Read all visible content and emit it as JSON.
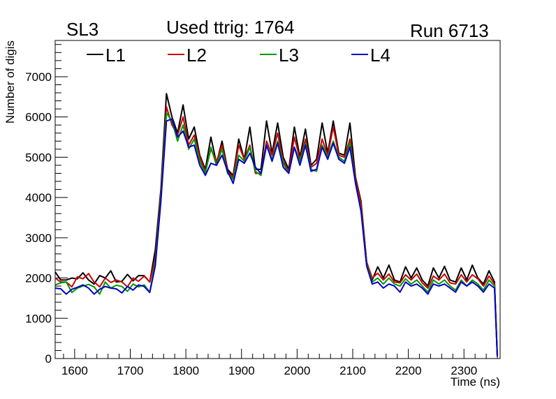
{
  "header": {
    "sl_label": "SL3",
    "title": "Used ttrig: 1764",
    "run_label": "Run 6713"
  },
  "chart_data": {
    "type": "line",
    "title": "Used ttrig: 1764",
    "xlabel": "Time (ns)",
    "ylabel": "Number of digis",
    "xlim": [
      1565,
      2365
    ],
    "ylim": [
      0,
      7900
    ],
    "x_ticks": [
      1600,
      1700,
      1800,
      1900,
      2000,
      2100,
      2200,
      2300
    ],
    "y_ticks": [
      0,
      1000,
      2000,
      3000,
      4000,
      5000,
      6000,
      7000
    ],
    "grid": false,
    "legend_position": "top-left",
    "x": [
      1565,
      1575,
      1585,
      1595,
      1605,
      1615,
      1625,
      1635,
      1645,
      1655,
      1665,
      1675,
      1685,
      1695,
      1705,
      1715,
      1725,
      1735,
      1745,
      1755,
      1765,
      1775,
      1785,
      1795,
      1805,
      1815,
      1825,
      1835,
      1845,
      1855,
      1865,
      1875,
      1885,
      1895,
      1905,
      1915,
      1925,
      1935,
      1945,
      1955,
      1965,
      1975,
      1985,
      1995,
      2005,
      2015,
      2025,
      2035,
      2045,
      2055,
      2065,
      2075,
      2085,
      2095,
      2105,
      2115,
      2125,
      2135,
      2145,
      2155,
      2165,
      2175,
      2185,
      2195,
      2205,
      2215,
      2225,
      2235,
      2245,
      2255,
      2265,
      2275,
      2285,
      2295,
      2305,
      2315,
      2325,
      2335,
      2345,
      2355,
      2360
    ],
    "series": [
      {
        "name": "L1",
        "color": "#000000",
        "values": [
          2150,
          1950,
          1950,
          2000,
          1980,
          2130,
          1950,
          1850,
          2060,
          2000,
          2180,
          1900,
          1920,
          2090,
          1930,
          2060,
          2060,
          1900,
          2700,
          4200,
          6580,
          6000,
          5600,
          6300,
          5450,
          5750,
          5050,
          4700,
          5500,
          4850,
          5400,
          4700,
          4550,
          5450,
          4950,
          5750,
          4700,
          4700,
          5900,
          5100,
          5850,
          5000,
          4700,
          5750,
          5000,
          5700,
          4800,
          4950,
          5850,
          5100,
          5900,
          5100,
          5050,
          5850,
          4500,
          3900,
          2400,
          1950,
          2280,
          2000,
          2320,
          1950,
          1900,
          2280,
          2000,
          2250,
          1950,
          1800,
          2250,
          2000,
          2290,
          1950,
          1900,
          2250,
          1950,
          2320,
          2000,
          1850,
          2180,
          1900,
          50
        ]
      },
      {
        "name": "L2",
        "color": "#cc0000",
        "values": [
          2000,
          1900,
          1900,
          1780,
          2030,
          1980,
          2110,
          1900,
          1780,
          2000,
          1890,
          1950,
          1900,
          1780,
          2000,
          1920,
          2050,
          1900,
          2500,
          4100,
          6250,
          5800,
          5550,
          6000,
          5300,
          5550,
          5000,
          4650,
          5200,
          4900,
          5300,
          4650,
          4500,
          5300,
          4950,
          5300,
          4600,
          4600,
          5400,
          5050,
          5600,
          4900,
          4650,
          5500,
          4950,
          5450,
          4750,
          4850,
          5450,
          5050,
          5750,
          5050,
          5000,
          5450,
          4450,
          3850,
          2400,
          2000,
          2120,
          1950,
          2100,
          1900,
          1880,
          2080,
          1950,
          2100,
          1880,
          1750,
          2050,
          1950,
          2100,
          1880,
          1850,
          2080,
          1900,
          2080,
          1980,
          1800,
          2050,
          1850,
          50
        ]
      },
      {
        "name": "L3",
        "color": "#009900",
        "values": [
          1830,
          1880,
          1900,
          1640,
          1750,
          1800,
          1840,
          1780,
          1600,
          1900,
          1750,
          1820,
          1790,
          1670,
          1850,
          1780,
          1830,
          1650,
          2400,
          4000,
          6100,
          5900,
          5400,
          5800,
          5200,
          5450,
          4900,
          4600,
          5250,
          4800,
          5200,
          4600,
          4450,
          5050,
          4900,
          5250,
          4650,
          4550,
          5300,
          4950,
          5400,
          4850,
          4600,
          5250,
          4900,
          5350,
          4700,
          4650,
          5300,
          5000,
          5400,
          5000,
          4900,
          5350,
          4350,
          3700,
          2350,
          1900,
          2000,
          1850,
          2000,
          1850,
          1800,
          1980,
          1850,
          1950,
          1800,
          1650,
          1950,
          1850,
          1950,
          1800,
          1700,
          1950,
          1800,
          1950,
          1850,
          1700,
          1950,
          1800,
          50
        ]
      },
      {
        "name": "L4",
        "color": "#0000cc",
        "values": [
          1750,
          1730,
          1600,
          1720,
          1770,
          1830,
          1750,
          1600,
          1720,
          1790,
          1750,
          1730,
          1630,
          1790,
          1700,
          1830,
          1790,
          1640,
          2300,
          3900,
          5900,
          5950,
          5500,
          5650,
          5250,
          5300,
          4800,
          4550,
          4850,
          4800,
          5050,
          4650,
          4350,
          4950,
          4850,
          5100,
          4750,
          4600,
          5300,
          4900,
          5350,
          4750,
          4600,
          5250,
          4800,
          5300,
          4650,
          4700,
          5250,
          4950,
          5350,
          4950,
          4850,
          5250,
          4350,
          3650,
          2300,
          1850,
          1900,
          1750,
          1850,
          1800,
          1650,
          1900,
          1800,
          1850,
          1750,
          1600,
          1850,
          1800,
          1850,
          1750,
          1650,
          1900,
          1800,
          1900,
          1800,
          1650,
          1850,
          1750,
          50
        ]
      }
    ]
  }
}
